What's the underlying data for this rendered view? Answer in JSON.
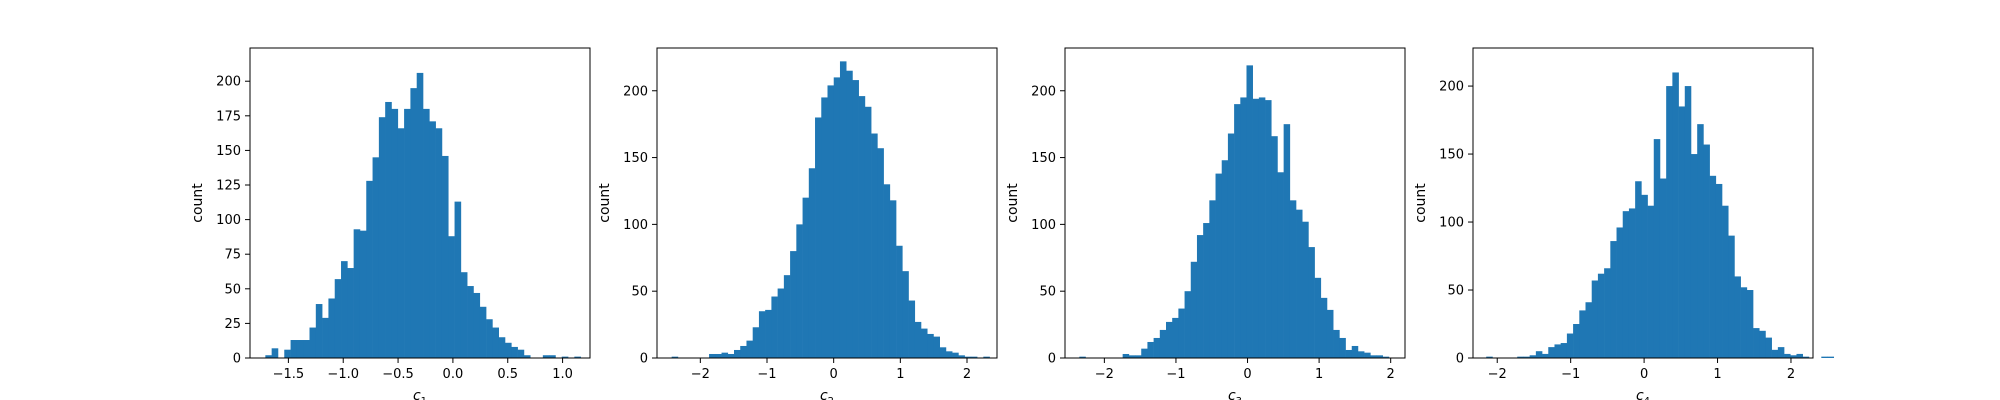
{
  "chart_data": [
    {
      "type": "bar",
      "subtype": "histogram",
      "xlabel": "c",
      "xlabel_sub": "1",
      "ylabel": "count",
      "xlim": [
        -1.85,
        1.25
      ],
      "ylim": [
        0,
        224
      ],
      "xticks": [
        -1.5,
        -1.0,
        -0.5,
        0.0,
        0.5,
        1.0
      ],
      "xtick_labels": [
        "−1.5",
        "−1.0",
        "−0.5",
        "0.0",
        "0.5",
        "1.0"
      ],
      "yticks": [
        0,
        25,
        50,
        75,
        100,
        125,
        150,
        175,
        200
      ],
      "ytick_labels": [
        "0",
        "25",
        "50",
        "75",
        "100",
        "125",
        "150",
        "175",
        "200"
      ],
      "bin_start": -1.71,
      "bin_width": 0.0575,
      "counts": [
        2,
        7,
        0,
        6,
        13,
        13,
        13,
        22,
        39,
        29,
        43,
        57,
        70,
        65,
        93,
        92,
        128,
        145,
        174,
        185,
        180,
        166,
        180,
        195,
        206,
        180,
        171,
        166,
        146,
        88,
        113,
        62,
        52,
        47,
        37,
        28,
        22,
        15,
        11,
        8,
        6,
        2,
        0,
        0,
        2,
        2,
        0,
        1,
        0,
        1
      ]
    },
    {
      "type": "bar",
      "subtype": "histogram",
      "xlabel": "c",
      "xlabel_sub": "2",
      "ylabel": "count",
      "xlim": [
        -2.65,
        2.45
      ],
      "ylim": [
        0,
        232
      ],
      "xticks": [
        -2,
        -1,
        0,
        1,
        2
      ],
      "xtick_labels": [
        "−2",
        "−1",
        "0",
        "1",
        "2"
      ],
      "yticks": [
        0,
        50,
        100,
        150,
        200
      ],
      "ytick_labels": [
        "0",
        "50",
        "100",
        "150",
        "200"
      ],
      "bin_start": -2.43,
      "bin_width": 0.0935,
      "counts": [
        1,
        0,
        0,
        0,
        0,
        0,
        3,
        3,
        4,
        3,
        6,
        9,
        13,
        23,
        35,
        36,
        46,
        52,
        62,
        80,
        100,
        120,
        142,
        180,
        195,
        204,
        210,
        222,
        215,
        208,
        196,
        188,
        168,
        157,
        130,
        118,
        84,
        65,
        43,
        27,
        22,
        18,
        16,
        8,
        5,
        4,
        2,
        1,
        1,
        0,
        1,
        0
      ]
    },
    {
      "type": "bar",
      "subtype": "histogram",
      "xlabel": "c",
      "xlabel_sub": "3",
      "ylabel": "count",
      "xlim": [
        -2.55,
        2.2
      ],
      "ylim": [
        0,
        232
      ],
      "xticks": [
        -2,
        -1,
        0,
        1,
        2
      ],
      "xtick_labels": [
        "−2",
        "−1",
        "0",
        "1",
        "2"
      ],
      "yticks": [
        0,
        50,
        100,
        150,
        200
      ],
      "ytick_labels": [
        "0",
        "50",
        "100",
        "150",
        "200"
      ],
      "bin_start": -2.35,
      "bin_width": 0.0865,
      "counts": [
        1,
        0,
        0,
        0,
        0,
        0,
        0,
        3,
        2,
        2,
        7,
        12,
        15,
        21,
        27,
        30,
        37,
        50,
        72,
        92,
        101,
        118,
        138,
        148,
        168,
        190,
        195,
        219,
        194,
        195,
        193,
        166,
        139,
        175,
        118,
        111,
        102,
        83,
        60,
        45,
        36,
        21,
        15,
        6,
        9,
        5,
        4,
        2,
        2,
        1
      ]
    },
    {
      "type": "bar",
      "subtype": "histogram",
      "xlabel": "c",
      "xlabel_sub": "4",
      "ylabel": "count",
      "xlim": [
        -2.33,
        2.3
      ],
      "ylim": [
        0,
        228
      ],
      "xticks": [
        -2,
        -1,
        0,
        1,
        2
      ],
      "xtick_labels": [
        "−2",
        "−1",
        "0",
        "1",
        "2"
      ],
      "yticks": [
        0,
        50,
        100,
        150,
        200
      ],
      "ytick_labels": [
        "0",
        "50",
        "100",
        "150",
        "200"
      ],
      "bin_start": -2.15,
      "bin_width": 0.0845,
      "counts": [
        1,
        0,
        0,
        0,
        0,
        1,
        1,
        2,
        5,
        3,
        8,
        10,
        11,
        18,
        25,
        35,
        41,
        57,
        62,
        66,
        86,
        96,
        108,
        110,
        130,
        120,
        112,
        161,
        132,
        200,
        210,
        185,
        200,
        150,
        172,
        157,
        134,
        128,
        112,
        90,
        60,
        52,
        50,
        22,
        20,
        15,
        6,
        8,
        3,
        2,
        3,
        1,
        0,
        0,
        1,
        1
      ]
    }
  ]
}
